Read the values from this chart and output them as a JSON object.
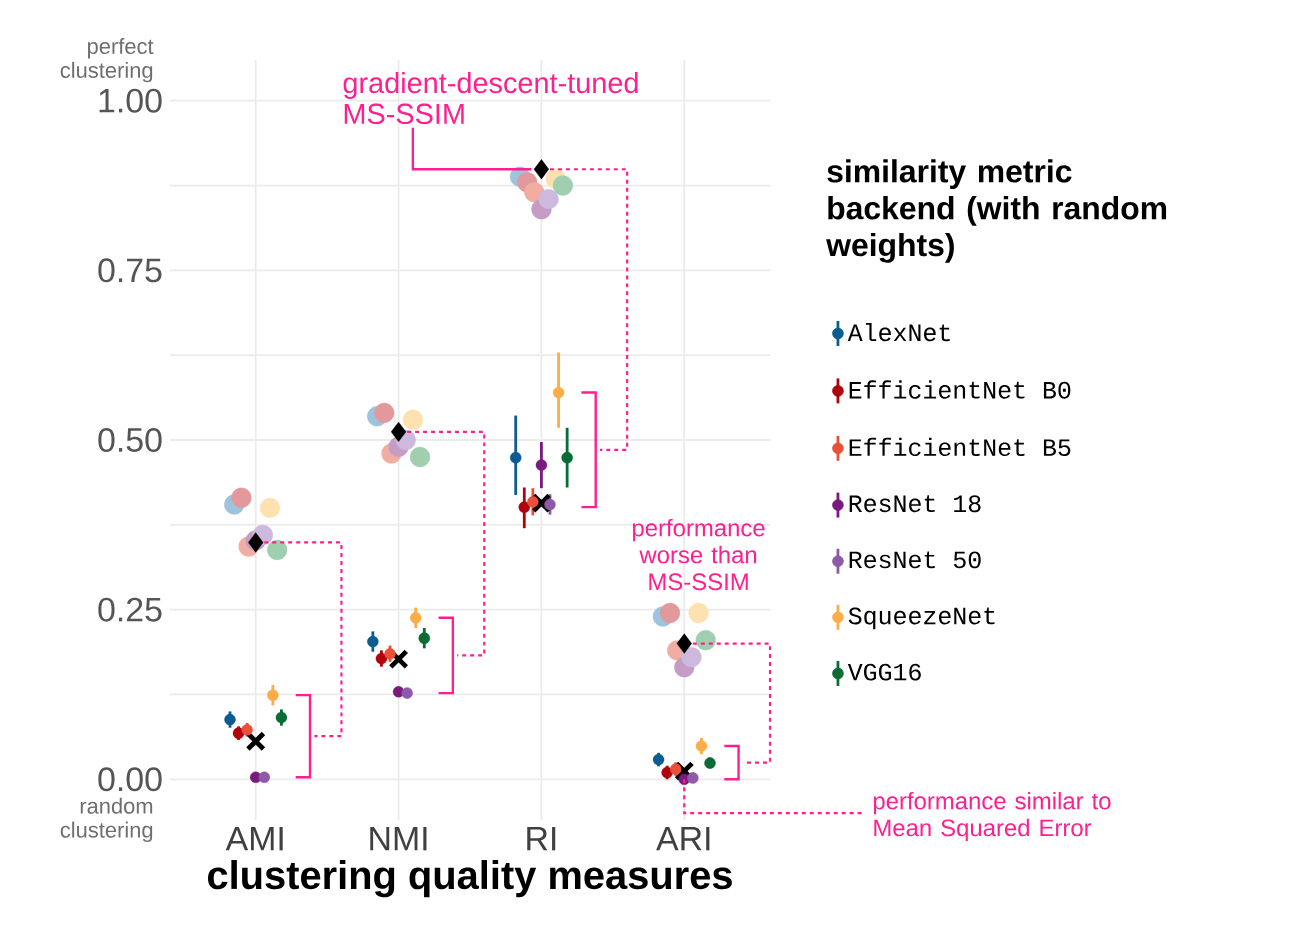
{
  "chart_data": {
    "type": "scatter",
    "categories": [
      "AMI",
      "NMI",
      "RI",
      "ARI"
    ],
    "xlabel": "clustering quality measures",
    "legend_title": "similarity metric backend (with random weights)",
    "legend": "right",
    "grid": true,
    "ylim": [
      -0.06,
      1.06
    ],
    "yticks": [
      {
        "value": 0,
        "label": "0.00"
      },
      {
        "value": 0.125,
        "label": null
      },
      {
        "value": 0.25,
        "label": "0.25"
      },
      {
        "value": 0.375,
        "label": null
      },
      {
        "value": 0.5,
        "label": "0.50"
      },
      {
        "value": 0.625,
        "label": null
      },
      {
        "value": 0.75,
        "label": "0.75"
      },
      {
        "value": 0.875,
        "label": null
      },
      {
        "value": 1,
        "label": "1.00"
      }
    ],
    "annotations": [
      {
        "text": "gradient-descent-tuned MS-SSIM",
        "x": "RI",
        "y": 0.899
      },
      {
        "text": "performance worse than MS-SSIM",
        "x": "ARI",
        "y": 0.2
      },
      {
        "text": "performance similar to Mean Squared Error",
        "x": "ARI",
        "y": 0.012
      },
      "perfect clustering",
      "random clustering"
    ],
    "series": [
      {
        "color": "#9ec3dc",
        "marker": "circle",
        "values": [
          0.405,
          0.535,
          0.888,
          0.24
        ]
      },
      {
        "color": "#e3999c",
        "marker": "circle",
        "values": [
          0.415,
          0.54,
          0.88,
          0.245
        ]
      },
      {
        "color": "#f1ada1",
        "marker": "circle",
        "values": [
          0.343,
          0.48,
          0.865,
          0.19
        ]
      },
      {
        "color": "#c59cc6",
        "marker": "circle",
        "values": [
          0.352,
          0.49,
          0.84,
          0.165
        ]
      },
      {
        "color": "#cdb8de",
        "marker": "circle",
        "values": [
          0.36,
          0.5,
          0.855,
          0.18
        ]
      },
      {
        "color": "#fde2b0",
        "marker": "circle",
        "values": [
          0.4,
          0.53,
          0.885,
          0.245
        ]
      },
      {
        "color": "#9fcfae",
        "marker": "circle",
        "values": [
          0.338,
          0.475,
          0.875,
          0.205
        ]
      },
      {
        "name": "AlexNet",
        "color": "#0b5d91",
        "marker": "circle",
        "values": [
          0.088,
          0.203,
          0.474,
          0.029
        ],
        "errors": [
          0.012,
          0.015,
          [
            0.419,
            0.536
          ],
          0.01
        ]
      },
      {
        "name": "EfficientNet B0",
        "color": "#b2000c",
        "marker": "circle",
        "values": [
          0.068,
          0.178,
          0.401,
          0.01
        ],
        "errors": [
          0.01,
          0.012,
          [
            0.37,
            0.43
          ],
          0.01
        ]
      },
      {
        "name": "EfficientNet B5",
        "color": "#e8503a",
        "marker": "circle",
        "values": [
          0.073,
          0.185,
          0.409,
          0.015
        ],
        "errors": [
          0.01,
          0.012,
          0.02,
          0.01
        ]
      },
      {
        "name": "ResNet 18",
        "color": "#7b1a7e",
        "marker": "circle",
        "values": [
          0.003,
          0.129,
          0.463,
          0.0
        ],
        "errors": [
          null,
          null,
          0.034,
          null
        ]
      },
      {
        "name": "ResNet 50",
        "color": "#8e5aa8",
        "marker": "circle",
        "values": [
          0.003,
          0.127,
          0.405,
          0.002
        ],
        "errors": [
          null,
          null,
          0.015,
          null
        ]
      },
      {
        "name": "SqueezeNet",
        "color": "#fbad48",
        "marker": "circle",
        "values": [
          0.124,
          0.238,
          0.57,
          0.049
        ],
        "errors": [
          0.015,
          0.015,
          [
            0.518,
            0.629
          ],
          0.012
        ]
      },
      {
        "name": "VGG16",
        "color": "#0a6b35",
        "marker": "circle",
        "values": [
          0.091,
          0.208,
          0.474,
          0.024
        ],
        "errors": [
          0.012,
          0.015,
          [
            0.43,
            0.518
          ],
          0.008
        ]
      },
      {
        "color": "#000000",
        "marker": "diamond",
        "values": [
          0.349,
          0.512,
          0.899,
          0.2
        ]
      },
      {
        "color": "#000000",
        "marker": "cross",
        "values": [
          0.056,
          0.177,
          0.407,
          0.012
        ]
      }
    ]
  }
}
